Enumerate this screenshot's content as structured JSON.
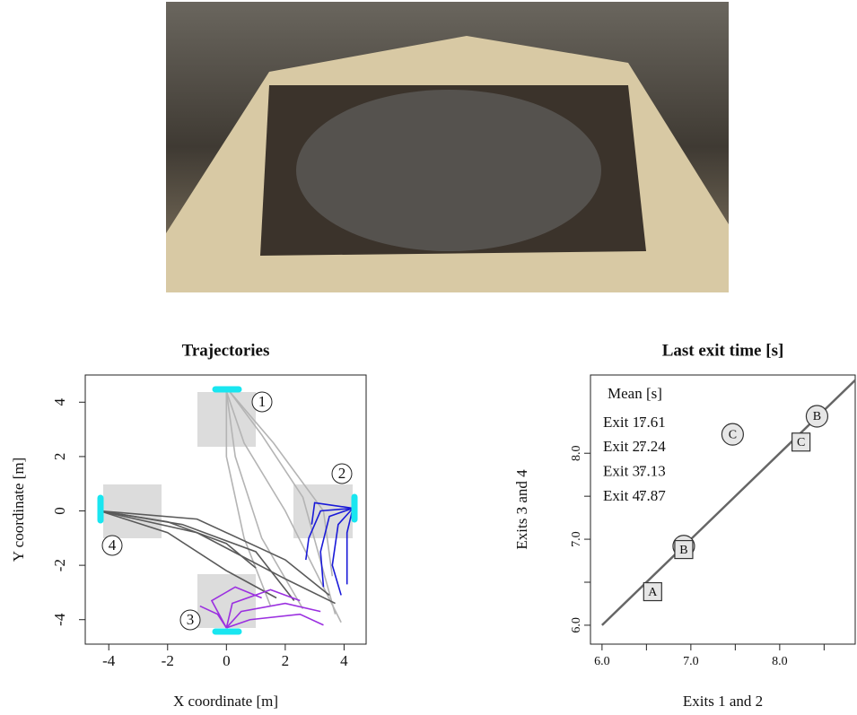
{
  "chart_data": [
    {
      "type": "line",
      "title": "Trajectories",
      "xlabel": "X coordinate [m]",
      "ylabel": "Y coordinate [m]",
      "xlim": [
        -4.8,
        4.75
      ],
      "ylim": [
        -4.9,
        5.0
      ],
      "xticks": [
        -4,
        -2,
        0,
        2,
        4
      ],
      "yticks": [
        -4,
        -2,
        0,
        2,
        4
      ],
      "exit_labels": [
        "1",
        "2",
        "3",
        "4"
      ],
      "series": [
        {
          "color": "#b4b4b4",
          "x": [
            0,
            0.3,
            1.2,
            2.6
          ],
          "values": [
            4.4,
            2,
            -1,
            -3.6
          ]
        },
        {
          "color": "#b4b4b4",
          "x": [
            0,
            0.6,
            2,
            3.9
          ],
          "values": [
            4.4,
            2.5,
            0,
            -4.1
          ]
        },
        {
          "color": "#b4b4b4",
          "x": [
            0.1,
            1.2,
            2.6,
            3.7
          ],
          "values": [
            4.4,
            2.8,
            0.5,
            -3.8
          ]
        },
        {
          "color": "#b4b4b4",
          "x": [
            0,
            0,
            0.6,
            1.5
          ],
          "values": [
            4.4,
            2,
            -1,
            -3.5
          ]
        },
        {
          "color": "#b4b4b4",
          "x": [
            0.1,
            1.6,
            3.3,
            3.6
          ],
          "values": [
            4.4,
            2.5,
            0,
            -2.4
          ]
        },
        {
          "color": "#5a5a5a",
          "x": [
            -4.3,
            -1,
            2,
            3.7
          ],
          "values": [
            0,
            -0.8,
            -2.5,
            -3.4
          ]
        },
        {
          "color": "#5a5a5a",
          "x": [
            -4.3,
            -1.5,
            1,
            2.3
          ],
          "values": [
            0,
            -0.5,
            -1.5,
            -3.3
          ]
        },
        {
          "color": "#5a5a5a",
          "x": [
            -4.3,
            -2,
            0,
            1
          ],
          "values": [
            0,
            -0.4,
            -1.2,
            -2.1
          ]
        },
        {
          "color": "#5a5a5a",
          "x": [
            -4.3,
            -2,
            0,
            1.7
          ],
          "values": [
            0,
            -0.8,
            -2.2,
            -3.2
          ]
        },
        {
          "color": "#5a5a5a",
          "x": [
            -4.3,
            -1,
            2,
            3.5
          ],
          "values": [
            0,
            -0.3,
            -1.8,
            -3.1
          ]
        },
        {
          "color": "#1a1ad8",
          "x": [
            4.3,
            3.2,
            2.8,
            2.7
          ],
          "values": [
            0.1,
            0,
            -1,
            -1.8
          ]
        },
        {
          "color": "#1a1ad8",
          "x": [
            4.3,
            3.5,
            3.2,
            3.3
          ],
          "values": [
            0.1,
            -0.2,
            -1.5,
            -2.8
          ]
        },
        {
          "color": "#1a1ad8",
          "x": [
            4.3,
            3.8,
            3.6,
            3.9
          ],
          "values": [
            0.1,
            -0.5,
            -2,
            -3.1
          ]
        },
        {
          "color": "#1a1ad8",
          "x": [
            4.3,
            4.1,
            4.1
          ],
          "values": [
            0.1,
            -0.8,
            -2.7
          ]
        },
        {
          "color": "#1a1ad8",
          "x": [
            4.3,
            3,
            2.9
          ],
          "values": [
            0.1,
            0.3,
            -0.5
          ]
        },
        {
          "color": "#9b30e0",
          "x": [
            0,
            -0.5,
            0.3,
            1.2
          ],
          "values": [
            -4.3,
            -3.3,
            -2.8,
            -3.2
          ]
        },
        {
          "color": "#9b30e0",
          "x": [
            0,
            0.2,
            1.5,
            2.5
          ],
          "values": [
            -4.3,
            -3.4,
            -2.9,
            -3.3
          ]
        },
        {
          "color": "#9b30e0",
          "x": [
            0,
            0.5,
            2,
            3.2
          ],
          "values": [
            -4.3,
            -3.7,
            -3.4,
            -3.7
          ]
        },
        {
          "color": "#9b30e0",
          "x": [
            0,
            0.8,
            2.5,
            3.3
          ],
          "values": [
            -4.3,
            -4.0,
            -3.8,
            -4.2
          ]
        },
        {
          "color": "#9b30e0",
          "x": [
            0,
            -0.3,
            -0.9
          ],
          "values": [
            -4.3,
            -3.8,
            -3.5
          ]
        }
      ]
    },
    {
      "type": "scatter",
      "title": "Last exit time [s]",
      "xlabel": "Exits 1 and 2",
      "ylabel": "Exits 3 and 4",
      "xlim": [
        5.87,
        8.85
      ],
      "ylim": [
        5.78,
        8.91
      ],
      "xticks": [
        {
          "value": 6,
          "label": "6.0"
        },
        {
          "value": 7,
          "label": "7.0"
        },
        {
          "value": 8,
          "label": "8.0"
        }
      ],
      "yticks": [
        {
          "value": 6,
          "label": "6.0"
        },
        {
          "value": 7,
          "label": "7.0"
        },
        {
          "value": 8,
          "label": "8.0"
        }
      ],
      "xminor_ticks": [
        6.5,
        7.5,
        8.5
      ],
      "yminor_ticks": [
        6.5,
        7.5
      ],
      "diagonal": true,
      "mean_box": {
        "title": "Mean [s]",
        "rows": [
          {
            "label": "Exit 1:",
            "value": 7.61
          },
          {
            "label": "Exit 2:",
            "value": 7.24
          },
          {
            "label": "Exit 3:",
            "value": 7.13
          },
          {
            "label": "Exit 4:",
            "value": 7.87
          }
        ]
      },
      "series": [
        {
          "marker": "circle",
          "color": "#e6e6e6",
          "x": [
            8.42,
            7.47,
            6.92
          ],
          "values": [
            8.43,
            8.22,
            6.92
          ],
          "labels": [
            "B",
            "C",
            null
          ]
        },
        {
          "marker": "square",
          "color": "#e6e6e6",
          "x": [
            6.57,
            6.92,
            8.24
          ],
          "values": [
            6.39,
            6.88,
            8.13
          ],
          "labels": [
            "A",
            "B",
            "C"
          ]
        }
      ]
    }
  ]
}
